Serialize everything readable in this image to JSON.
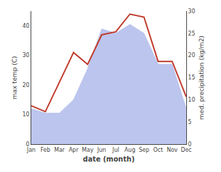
{
  "chart_data": {
    "type": "line",
    "xlabel": "date (month)",
    "ylabel": "max temp (C)",
    "y2label": "med. precipitation (kg/m2)",
    "categories": [
      "Jan",
      "Feb",
      "Mar",
      "Apr",
      "May",
      "Jun",
      "Jul",
      "Aug",
      "Sep",
      "Oct",
      "Nov",
      "Dec"
    ],
    "series": [
      {
        "type": "area",
        "axis": "y2",
        "color": "#bcc5ee",
        "values": [
          8,
          7,
          7,
          10,
          17,
          26,
          25,
          27,
          25,
          18,
          18,
          8
        ]
      },
      {
        "type": "line",
        "color": "#c0392b",
        "values": [
          13,
          11,
          21,
          31,
          27,
          37,
          38,
          44,
          43,
          28,
          28,
          16
        ]
      }
    ],
    "ylim": [
      0,
      45
    ],
    "yticks": [
      0,
      10,
      20,
      30,
      40
    ],
    "y2lim": [
      0,
      30
    ],
    "y2ticks": [
      0,
      5,
      10,
      15,
      20,
      25,
      30
    ],
    "grid": false
  }
}
